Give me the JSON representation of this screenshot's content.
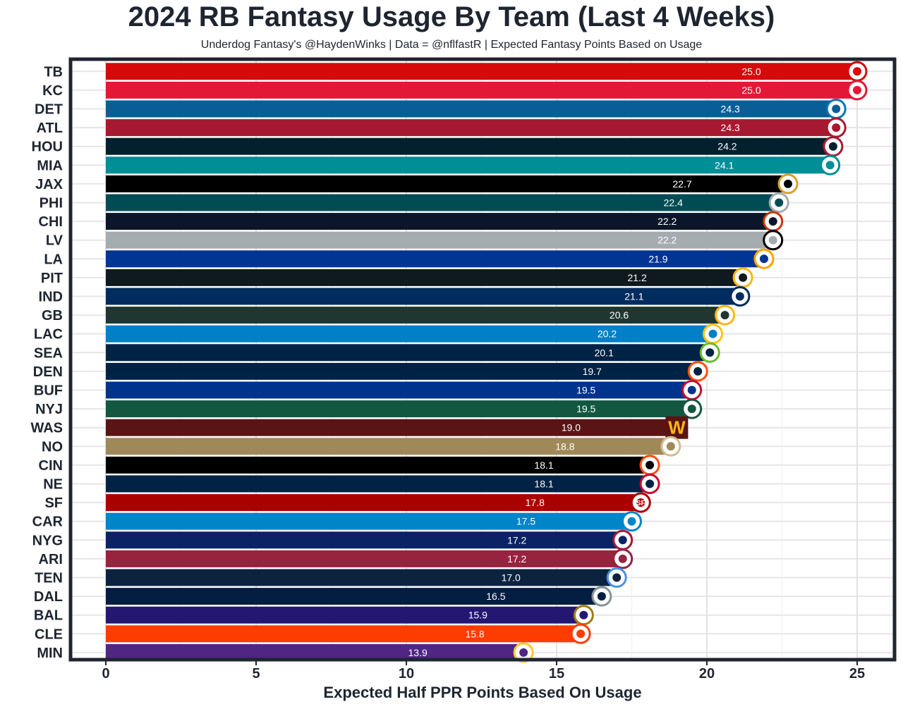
{
  "chart_data": {
    "type": "bar",
    "orientation": "horizontal",
    "title": "2024 RB Fantasy Usage By Team (Last 4 Weeks)",
    "subtitle": "Underdog Fantasy's @HaydenWinks | Data = @nflfastR | Expected Fantasy Points Based on Usage",
    "xlabel": "Expected Half PPR Points Based On Usage",
    "ylabel": "",
    "xlim": [
      0,
      25.5
    ],
    "xticks": [
      "0",
      "5",
      "10",
      "15",
      "20",
      "25"
    ],
    "grid": true,
    "categories": [
      "TB",
      "KC",
      "DET",
      "ATL",
      "HOU",
      "MIA",
      "JAX",
      "PHI",
      "CHI",
      "LV",
      "LA",
      "PIT",
      "IND",
      "GB",
      "LAC",
      "SEA",
      "DEN",
      "BUF",
      "NYJ",
      "WAS",
      "NO",
      "CIN",
      "NE",
      "SF",
      "CAR",
      "NYG",
      "ARI",
      "TEN",
      "DAL",
      "BAL",
      "CLE",
      "MIN"
    ],
    "values": [
      25.0,
      25.0,
      24.3,
      24.3,
      24.2,
      24.1,
      22.7,
      22.4,
      22.2,
      22.2,
      21.9,
      21.2,
      21.1,
      20.6,
      20.2,
      20.1,
      19.7,
      19.5,
      19.5,
      19.0,
      18.8,
      18.1,
      18.1,
      17.8,
      17.5,
      17.2,
      17.2,
      17.0,
      16.5,
      15.9,
      15.8,
      13.9
    ],
    "value_labels": [
      "25.0",
      "25.0",
      "24.3",
      "24.3",
      "24.2",
      "24.1",
      "22.7",
      "22.4",
      "22.2",
      "22.2",
      "21.9",
      "21.2",
      "21.1",
      "20.6",
      "20.2",
      "20.1",
      "19.7",
      "19.5",
      "19.5",
      "19.0",
      "18.8",
      "18.1",
      "18.1",
      "17.8",
      "17.5",
      "17.2",
      "17.2",
      "17.0",
      "16.5",
      "15.9",
      "15.8",
      "13.9"
    ],
    "colors": [
      "#D50A0A",
      "#E31837",
      "#0A5E96",
      "#A71930",
      "#03202F",
      "#008E97",
      "#000000",
      "#004C54",
      "#0B162A",
      "#A5ACAF",
      "#003594",
      "#101820",
      "#002C5F",
      "#203731",
      "#0080C6",
      "#002244",
      "#002244",
      "#00338D",
      "#125740",
      "#5A1414",
      "#9F8958",
      "#000000",
      "#002244",
      "#AA0000",
      "#0085CA",
      "#0B2265",
      "#97233F",
      "#0C2340",
      "#041E42",
      "#241773",
      "#FF3C00",
      "#4F2683"
    ],
    "logo_colors": [
      "#D50A0A",
      "#E31837",
      "#0076B6",
      "#A71930",
      "#A71930",
      "#008E97",
      "#D7A22A",
      "#A5ACAF",
      "#C83803",
      "#000000",
      "#FFA300",
      "#FFB612",
      "#002C5F",
      "#FFB612",
      "#FFC20E",
      "#69BE28",
      "#FB4F14",
      "#C60C30",
      "#125740",
      "#FFB612",
      "#D3BC8D",
      "#FB4F14",
      "#C60C30",
      "#AA0000",
      "#0085CA",
      "#A71930",
      "#97233F",
      "#4B92DB",
      "#869397",
      "#9E7C0C",
      "#FF3C00",
      "#FFC62F"
    ],
    "logo_text": [
      "",
      "",
      "",
      "",
      "",
      "",
      "",
      "",
      "",
      "",
      "",
      "",
      "",
      "",
      "",
      "",
      "",
      "",
      "",
      "W",
      "",
      "",
      "",
      "SF",
      "",
      "",
      "",
      "",
      "",
      "",
      "",
      ""
    ]
  }
}
